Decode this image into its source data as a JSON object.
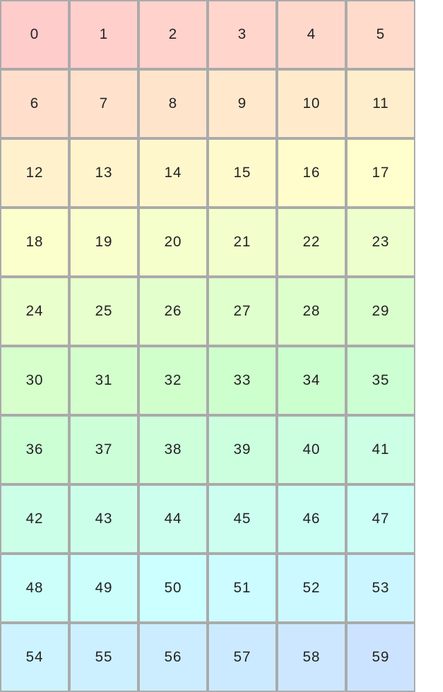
{
  "grid": {
    "columns": 6,
    "color_scheme": "hue gradient from pink (#ffcccc) through yellow, green, cyan to light blue (#cce0ff)",
    "border_color": "#aaaaaa",
    "cells": [
      "0",
      "1",
      "2",
      "3",
      "4",
      "5",
      "6",
      "7",
      "8",
      "9",
      "10",
      "11",
      "12",
      "13",
      "14",
      "15",
      "16",
      "17",
      "18",
      "19",
      "20",
      "21",
      "22",
      "23",
      "24",
      "25",
      "26",
      "27",
      "28",
      "29",
      "30",
      "31",
      "32",
      "33",
      "34",
      "35",
      "36",
      "37",
      "38",
      "39",
      "40",
      "41",
      "42",
      "43",
      "44",
      "45",
      "46",
      "47",
      "48",
      "49",
      "50",
      "51",
      "52",
      "53",
      "54",
      "55",
      "56",
      "57",
      "58",
      "59"
    ]
  }
}
